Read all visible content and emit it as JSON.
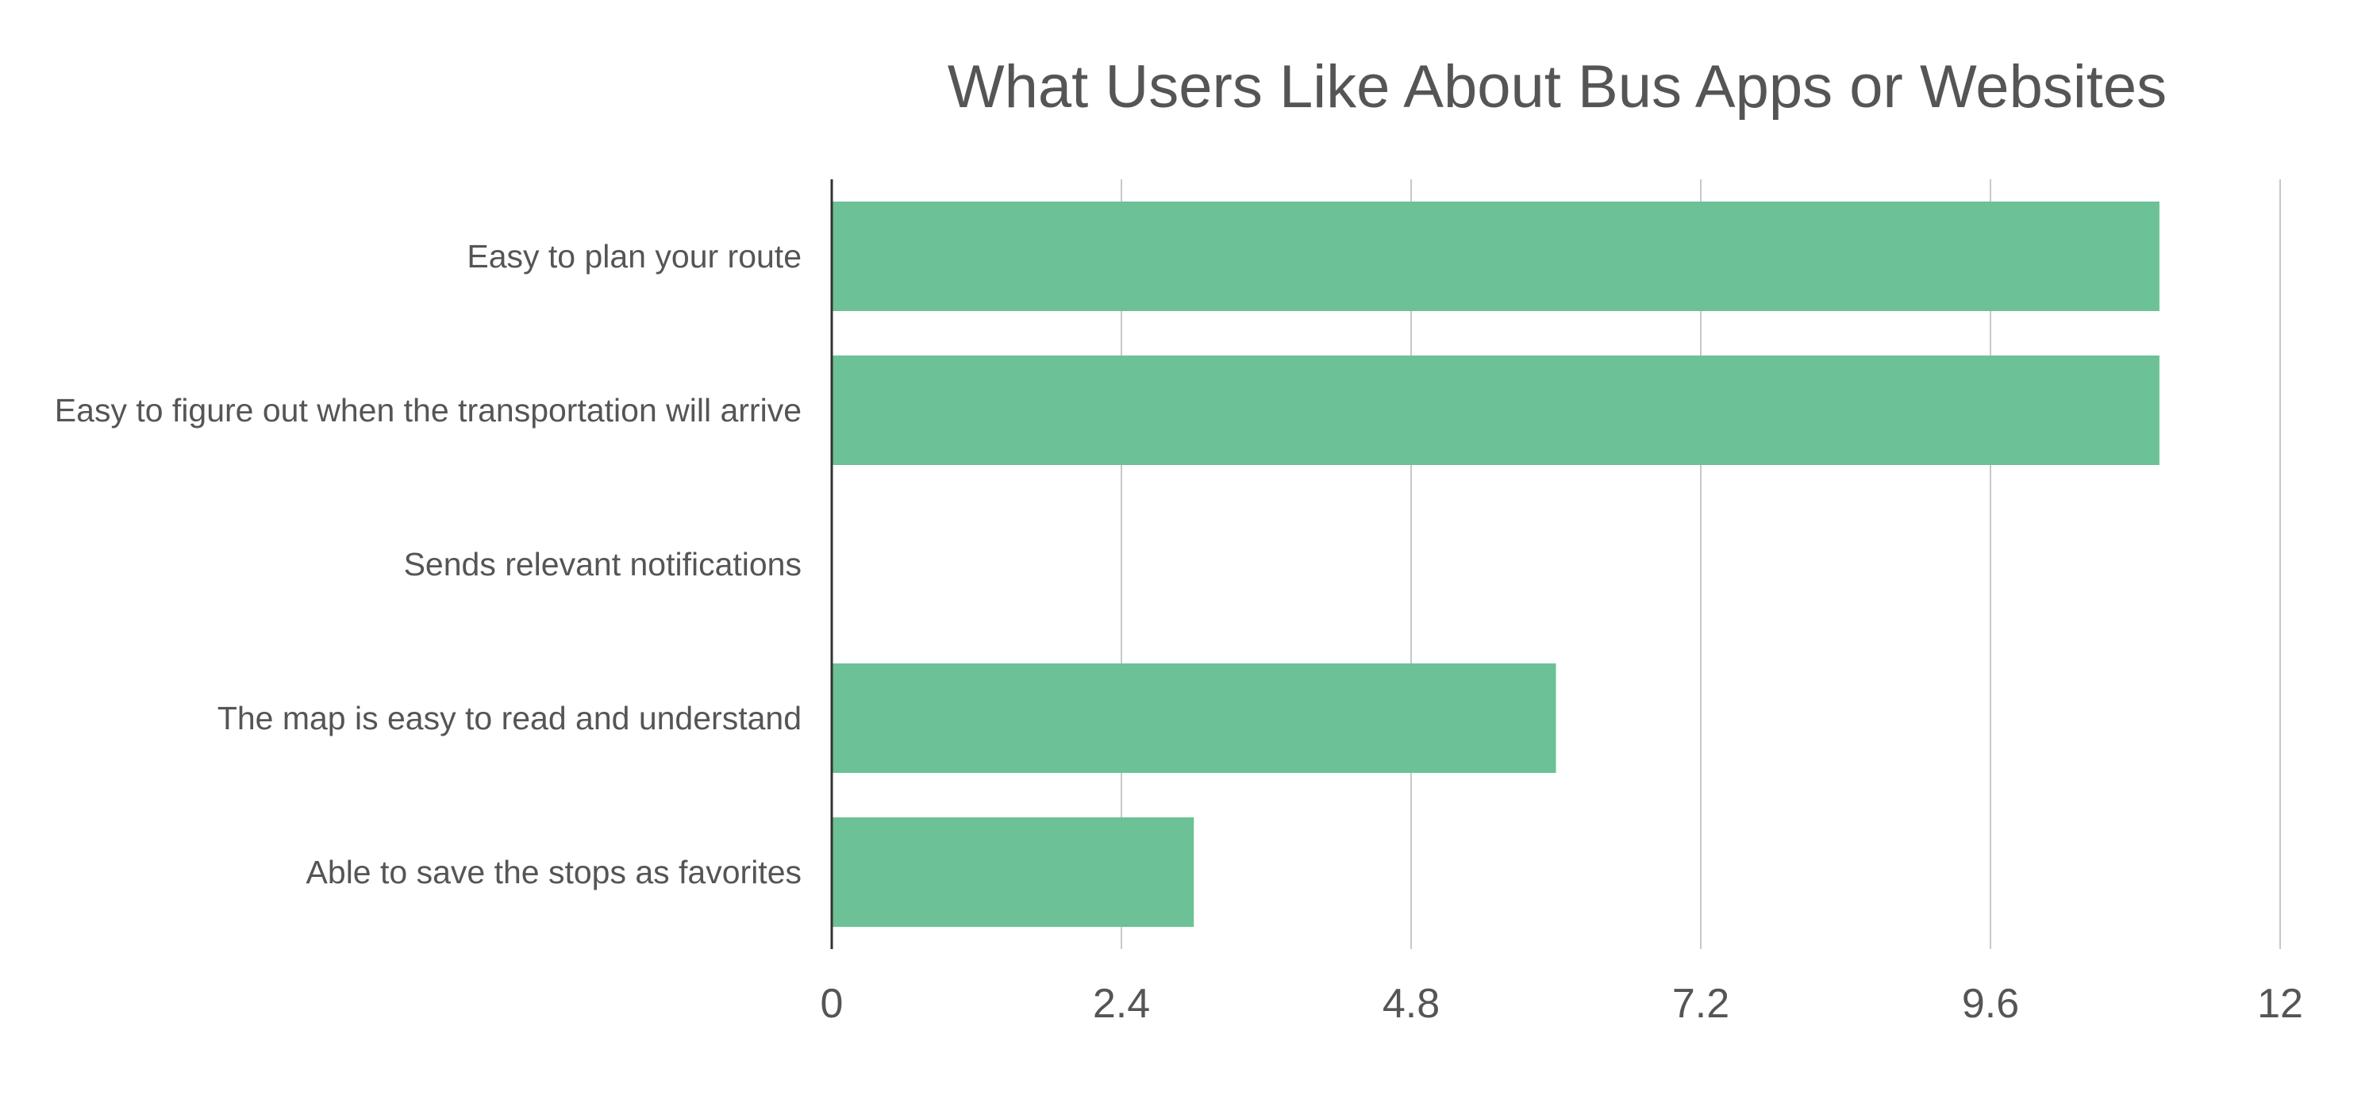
{
  "chart_data": {
    "type": "bar",
    "orientation": "horizontal",
    "title": "What Users Like About Bus Apps or Websites",
    "xlabel": "",
    "ylabel": "",
    "categories": [
      "Easy to plan your route",
      "Easy to figure out when the transportation will arrive",
      "Sends relevant notifications",
      "The map is easy to read and understand",
      "Able to save the stops as favorites"
    ],
    "values": [
      11,
      11,
      0,
      6,
      3
    ],
    "xlim": [
      0,
      12
    ],
    "xticks": [
      "0",
      "2.4",
      "4.8",
      "7.2",
      "9.6",
      "12"
    ],
    "grid": "vertical",
    "legend": "none",
    "bar_color": "#6cc196",
    "grid_color": "#c8c8c8",
    "axis_color": "#333333",
    "text_color": "#555555"
  }
}
